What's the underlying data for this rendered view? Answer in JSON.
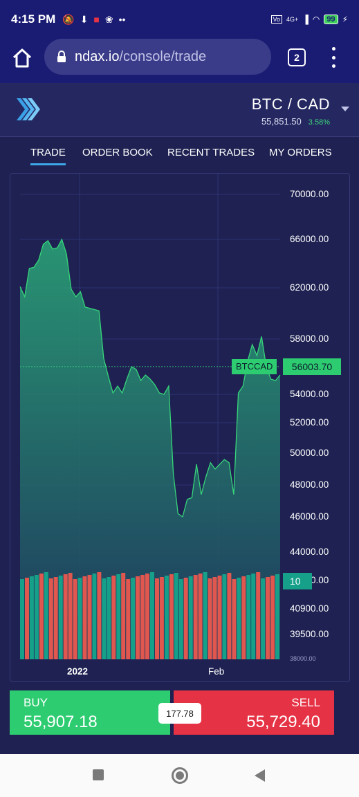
{
  "status_bar": {
    "time": "4:15 PM",
    "network": "4G+",
    "battery": "99"
  },
  "browser": {
    "url_host": "ndax.io",
    "url_path": "/console/trade",
    "tab_count": "2"
  },
  "header": {
    "pair": "BTC / CAD",
    "last_price": "55,851.50",
    "change": "3.58%"
  },
  "nav": {
    "tabs": [
      {
        "label": "TRADE",
        "active": true
      },
      {
        "label": "ORDER BOOK",
        "active": false
      },
      {
        "label": "RECENT TRADES",
        "active": false
      },
      {
        "label": "MY ORDERS",
        "active": false
      }
    ]
  },
  "chart_data": {
    "type": "area",
    "symbol": "BTCCAD",
    "current_price_label": "56003.70",
    "current_price": 56003.7,
    "volume_label": "10",
    "y_tick_labels": [
      "70000.00",
      "66000.00",
      "62000.00",
      "58000.00",
      "54000.00",
      "52000.00",
      "50000.00",
      "48000.00",
      "46000.00",
      "44000.00",
      "42000.00",
      "40900.00",
      "39500.00",
      "38000.00"
    ],
    "x_tick_labels": [
      "2022",
      "Feb"
    ],
    "colors": {
      "line": "#37d67a",
      "volume_up": "#16a08a",
      "volume_down": "#e0574f",
      "price_tag": "#2ecc71"
    },
    "price_series": [
      62100,
      61300,
      63600,
      63700,
      64300,
      65600,
      65900,
      65200,
      65300,
      66000,
      64800,
      61900,
      61300,
      61700,
      60500,
      60400,
      60300,
      60200,
      56600,
      55300,
      54100,
      54600,
      54100,
      55100,
      56000,
      55800,
      55000,
      55400,
      55100,
      54700,
      54100,
      54000,
      54600,
      48700,
      46200,
      46000,
      47100,
      47200,
      49300,
      47400,
      48500,
      49400,
      49000,
      49300,
      49600,
      49400,
      47400,
      54100,
      54600,
      56400,
      57600,
      56800,
      58200,
      56000,
      55100,
      55000,
      55400
    ]
  },
  "trade": {
    "buy_label": "BUY",
    "buy_price": "55,907.18",
    "spread": "177.78",
    "sell_label": "SELL",
    "sell_price": "55,729.40"
  }
}
